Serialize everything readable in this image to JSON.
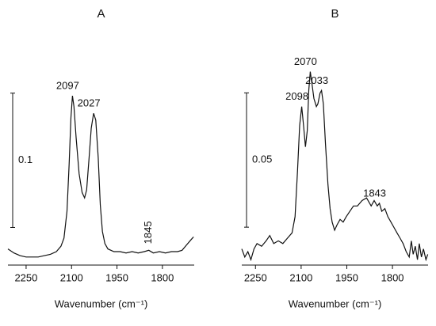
{
  "chart_data": [
    {
      "type": "line",
      "title": "A",
      "xlabel": "Wavenumber (cm⁻¹)",
      "color": "#111111",
      "xlim": [
        2310,
        1695
      ],
      "xticks": [
        2250,
        2100,
        1950,
        1800
      ],
      "ylim": [
        0,
        0.162
      ],
      "scale_bar": {
        "from": 0.028,
        "length": 0.1
      },
      "x": [
        2310,
        2290,
        2270,
        2250,
        2230,
        2210,
        2190,
        2170,
        2150,
        2135,
        2125,
        2115,
        2108,
        2102,
        2097,
        2092,
        2085,
        2075,
        2065,
        2057,
        2050,
        2042,
        2035,
        2027,
        2020,
        2012,
        2005,
        1998,
        1990,
        1980,
        1960,
        1940,
        1920,
        1900,
        1880,
        1860,
        1845,
        1830,
        1810,
        1790,
        1770,
        1750,
        1735,
        1720,
        1705,
        1697
      ],
      "values": [
        0.012,
        0.009,
        0.007,
        0.006,
        0.006,
        0.006,
        0.007,
        0.008,
        0.01,
        0.014,
        0.02,
        0.04,
        0.075,
        0.11,
        0.126,
        0.118,
        0.095,
        0.068,
        0.054,
        0.05,
        0.056,
        0.08,
        0.102,
        0.113,
        0.108,
        0.08,
        0.045,
        0.025,
        0.016,
        0.012,
        0.01,
        0.01,
        0.009,
        0.01,
        0.009,
        0.01,
        0.011,
        0.009,
        0.01,
        0.009,
        0.01,
        0.01,
        0.011,
        0.015,
        0.019,
        0.021
      ],
      "annotations": [
        {
          "x": 2097,
          "text": "2097"
        },
        {
          "x": 2027,
          "text": "2027"
        },
        {
          "x": 1845,
          "text": "1845",
          "rotated": true
        }
      ]
    },
    {
      "type": "line",
      "title": "B",
      "xlabel": "Wavenumber (cm⁻¹)",
      "color": "#111111",
      "xlim": [
        2295,
        1683
      ],
      "xticks": [
        2250,
        2100,
        1950,
        1800
      ],
      "ylim": [
        0,
        0.081
      ],
      "scale_bar": {
        "from": 0.0141,
        "length": 0.05
      },
      "x": [
        2295,
        2285,
        2275,
        2265,
        2255,
        2245,
        2230,
        2215,
        2203,
        2190,
        2175,
        2160,
        2145,
        2130,
        2120,
        2112,
        2105,
        2098,
        2092,
        2086,
        2080,
        2075,
        2070,
        2065,
        2058,
        2050,
        2045,
        2038,
        2033,
        2027,
        2020,
        2012,
        2005,
        1998,
        1990,
        1982,
        1972,
        1962,
        1952,
        1940,
        1928,
        1915,
        1900,
        1885,
        1870,
        1860,
        1850,
        1843,
        1835,
        1825,
        1815,
        1805,
        1795,
        1785,
        1775,
        1765,
        1755,
        1745,
        1738,
        1732,
        1725,
        1718,
        1712,
        1705,
        1698,
        1690,
        1684
      ],
      "values": [
        0.006,
        0.003,
        0.005,
        0.002,
        0.006,
        0.008,
        0.007,
        0.009,
        0.011,
        0.008,
        0.009,
        0.008,
        0.01,
        0.012,
        0.018,
        0.035,
        0.052,
        0.059,
        0.052,
        0.044,
        0.05,
        0.065,
        0.072,
        0.068,
        0.062,
        0.059,
        0.06,
        0.064,
        0.065,
        0.06,
        0.045,
        0.03,
        0.021,
        0.016,
        0.013,
        0.015,
        0.017,
        0.016,
        0.018,
        0.02,
        0.022,
        0.022,
        0.024,
        0.025,
        0.022,
        0.024,
        0.022,
        0.023,
        0.02,
        0.021,
        0.018,
        0.016,
        0.014,
        0.012,
        0.01,
        0.008,
        0.005,
        0.003,
        0.009,
        0.004,
        0.007,
        0.002,
        0.008,
        0.003,
        0.006,
        0.002,
        0.004
      ],
      "annotations": [
        {
          "x": 2098,
          "text": "2098"
        },
        {
          "x": 2070,
          "text": "2070"
        },
        {
          "x": 2033,
          "text": "2033"
        },
        {
          "x": 1843,
          "text": "1843"
        }
      ]
    }
  ]
}
